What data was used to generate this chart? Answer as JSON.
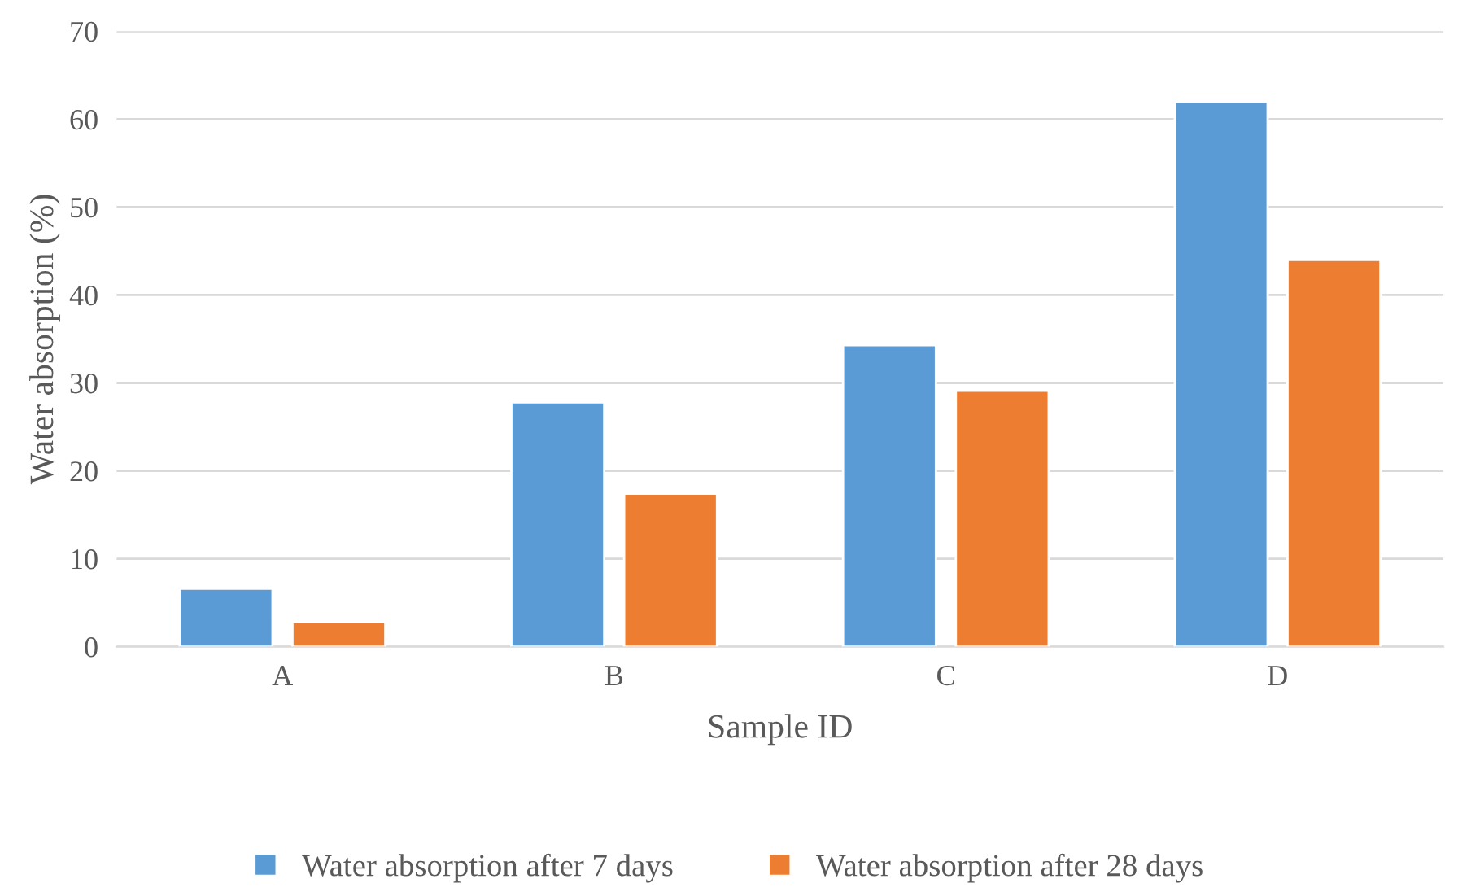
{
  "chart_data": {
    "type": "bar",
    "xlabel": "Sample ID",
    "ylabel": "Water absorption (%)",
    "categories": [
      "A",
      "B",
      "C",
      "D"
    ],
    "series": [
      {
        "name": "Water absorption after 7 days",
        "color": "#5b9bd5",
        "values": [
          6.6,
          27.8,
          34.3,
          62
        ]
      },
      {
        "name": "Water absorption after 28 days",
        "color": "#ed7d31",
        "values": [
          2.8,
          17.4,
          29.1,
          44
        ]
      }
    ],
    "ylim": [
      0,
      70
    ],
    "yticks": [
      0,
      10,
      20,
      30,
      40,
      50,
      60,
      70
    ],
    "grid": "y",
    "legend": "bottom"
  }
}
